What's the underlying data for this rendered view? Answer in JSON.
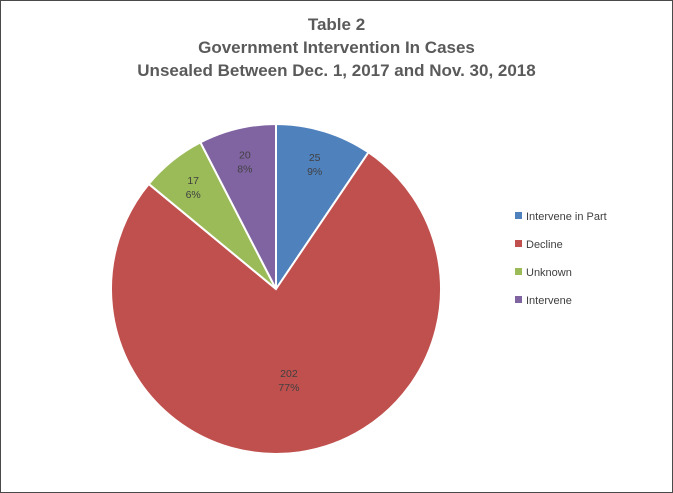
{
  "chart_data": {
    "type": "pie",
    "title": [
      "Table 2",
      "Government Intervention In Cases",
      "Unsealed Between Dec. 1, 2017 and Nov. 30, 2018"
    ],
    "legend_position": "right",
    "slices": [
      {
        "name": "Intervene in Part",
        "value": 25,
        "percent_label": "9%",
        "color": "#4f81bd"
      },
      {
        "name": "Decline",
        "value": 202,
        "percent_label": "77%",
        "color": "#c0504d"
      },
      {
        "name": "Unknown",
        "value": 17,
        "percent_label": "6%",
        "color": "#9bbb59"
      },
      {
        "name": "Intervene",
        "value": 20,
        "percent_label": "8%",
        "color": "#8064a2"
      }
    ]
  }
}
